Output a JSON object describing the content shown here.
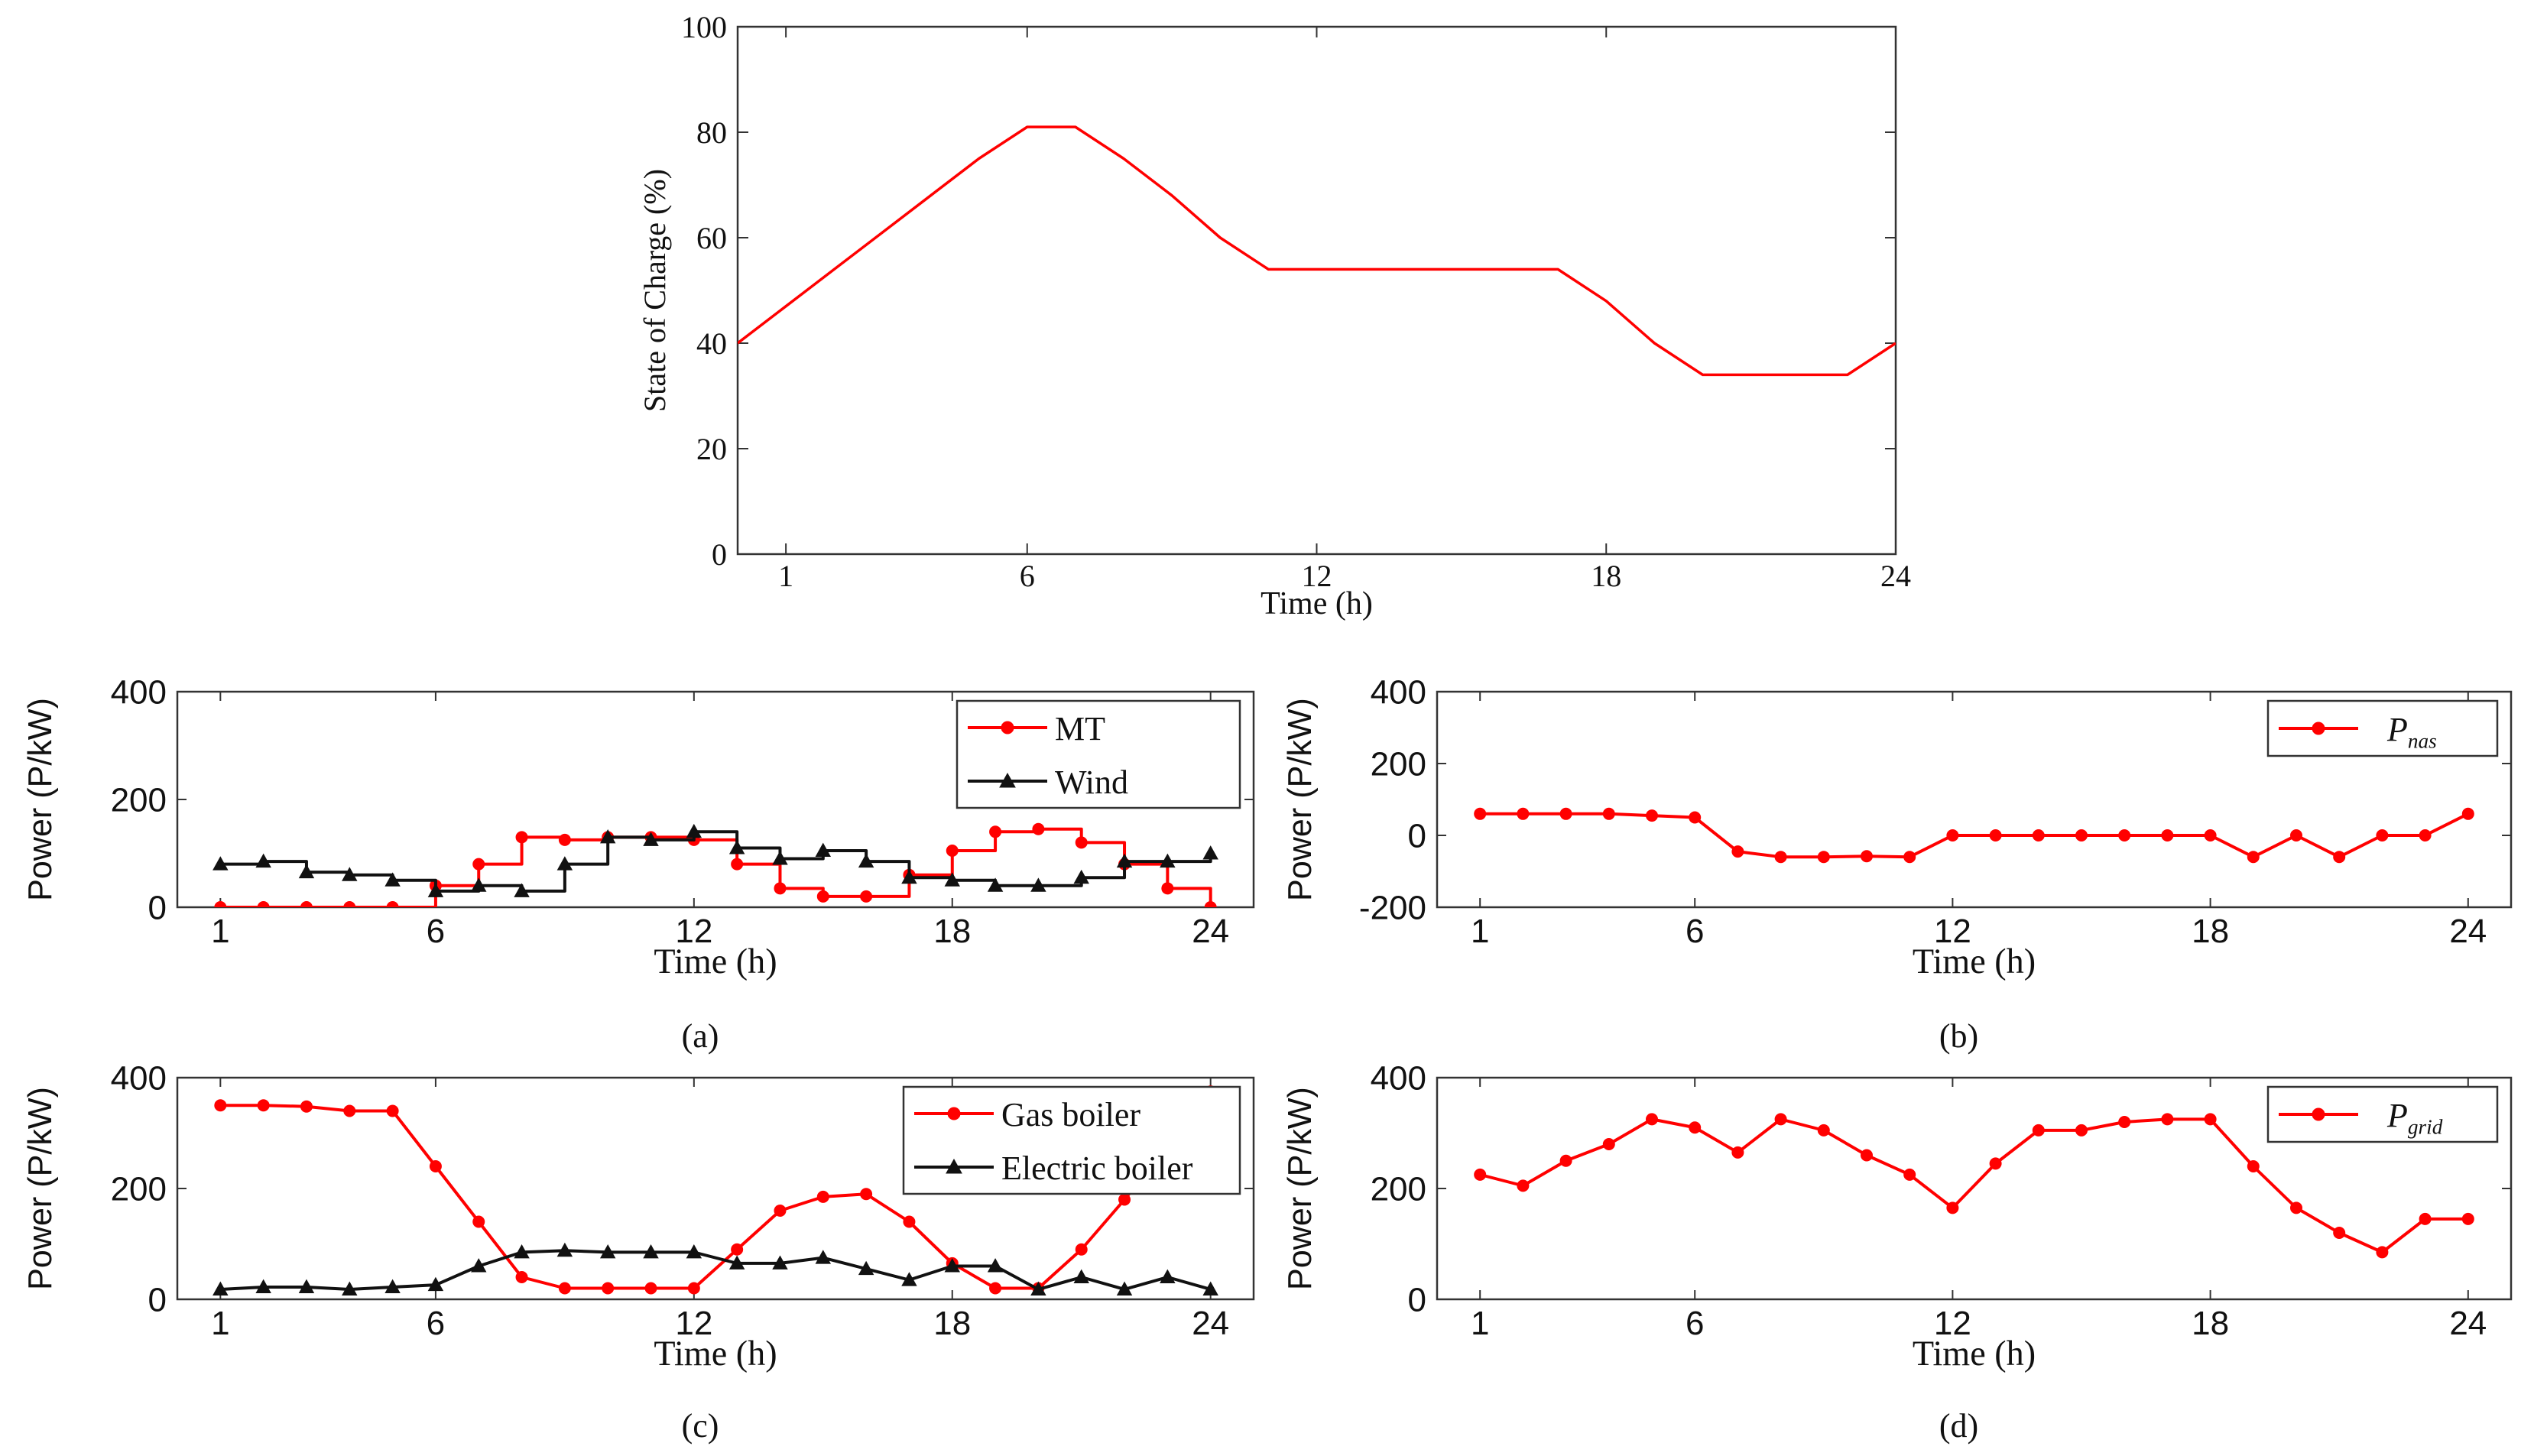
{
  "colors": {
    "red": "#ff0000",
    "black": "#111111",
    "axis": "#333333"
  },
  "chart_data": [
    {
      "id": "soc",
      "type": "line",
      "title": "",
      "xlabel": "Time (h)",
      "ylabel": "State of Charge (%)",
      "xlim": [
        0,
        24
      ],
      "ylim": [
        0,
        100
      ],
      "xticks": [
        1,
        6,
        12,
        18,
        24
      ],
      "yticks": [
        0,
        20,
        40,
        60,
        80,
        100
      ],
      "grid": false,
      "legend": "none",
      "series": [
        {
          "color": "#ff0000",
          "marker": "none",
          "step": false,
          "x": [
            0,
            1,
            2,
            3,
            4,
            5,
            6,
            7,
            8,
            9,
            10,
            11,
            12,
            13,
            14,
            15,
            16,
            17,
            18,
            19,
            20,
            21,
            22,
            23,
            24
          ],
          "values": [
            40,
            47,
            54,
            61,
            68,
            75,
            81,
            81,
            75,
            68,
            60,
            54,
            54,
            54,
            54,
            54,
            54,
            54,
            48,
            40,
            34,
            34,
            34,
            34,
            40
          ]
        }
      ]
    },
    {
      "id": "a",
      "type": "line",
      "caption": "(a)",
      "xlabel": "Time (h)",
      "ylabel": "Power (P/kW)",
      "xlim": [
        0,
        25
      ],
      "ylim": [
        0,
        400
      ],
      "xticks": [
        1,
        6,
        12,
        18,
        24
      ],
      "yticks": [
        0,
        200,
        400
      ],
      "legend": "top-right",
      "series": [
        {
          "name": "MT",
          "color": "#ff0000",
          "marker": "circle",
          "step": true,
          "x": [
            1,
            2,
            3,
            4,
            5,
            6,
            7,
            8,
            9,
            10,
            11,
            12,
            13,
            14,
            15,
            16,
            17,
            18,
            19,
            20,
            21,
            22,
            23,
            24
          ],
          "values": [
            0,
            0,
            0,
            0,
            0,
            40,
            80,
            130,
            125,
            130,
            130,
            125,
            80,
            35,
            20,
            20,
            60,
            105,
            140,
            145,
            120,
            80,
            35,
            0
          ]
        },
        {
          "name": "Wind",
          "color": "#111111",
          "marker": "triangle",
          "step": true,
          "x": [
            1,
            2,
            3,
            4,
            5,
            6,
            7,
            8,
            9,
            10,
            11,
            12,
            13,
            14,
            15,
            16,
            17,
            18,
            19,
            20,
            21,
            22,
            23,
            24
          ],
          "values": [
            80,
            85,
            65,
            60,
            50,
            30,
            40,
            30,
            80,
            130,
            125,
            140,
            110,
            90,
            105,
            85,
            55,
            50,
            40,
            40,
            55,
            85,
            85,
            100
          ]
        }
      ]
    },
    {
      "id": "b",
      "type": "line",
      "caption": "(b)",
      "xlabel": "Time (h)",
      "ylabel": "Power (P/kW)",
      "xlim": [
        0,
        25
      ],
      "ylim": [
        -200,
        400
      ],
      "xticks": [
        1,
        6,
        12,
        18,
        24
      ],
      "yticks": [
        -200,
        0,
        200,
        400
      ],
      "legend": "top-right",
      "series": [
        {
          "name": "P",
          "name_sub": "nas",
          "color": "#ff0000",
          "marker": "circle",
          "step": false,
          "x": [
            1,
            2,
            3,
            4,
            5,
            6,
            7,
            8,
            9,
            10,
            11,
            12,
            13,
            14,
            15,
            16,
            17,
            18,
            19,
            20,
            21,
            22,
            23,
            24
          ],
          "values": [
            60,
            60,
            60,
            60,
            55,
            50,
            -45,
            -60,
            -60,
            -58,
            -60,
            0,
            0,
            0,
            0,
            0,
            0,
            0,
            -60,
            0,
            -60,
            0,
            0,
            60
          ]
        }
      ]
    },
    {
      "id": "c",
      "type": "line",
      "caption": "(c)",
      "xlabel": "Time (h)",
      "ylabel": "Power (P/kW)",
      "xlim": [
        0,
        25
      ],
      "ylim": [
        0,
        400
      ],
      "xticks": [
        1,
        6,
        12,
        18,
        24
      ],
      "yticks": [
        0,
        200,
        400
      ],
      "legend": "top-right",
      "series": [
        {
          "name": "Gas boiler",
          "color": "#ff0000",
          "marker": "circle",
          "step": false,
          "x": [
            1,
            2,
            3,
            4,
            5,
            6,
            7,
            8,
            9,
            10,
            11,
            12,
            13,
            14,
            15,
            16,
            17,
            18,
            19,
            20,
            21,
            22,
            23,
            24
          ],
          "values": [
            350,
            350,
            348,
            340,
            340,
            240,
            140,
            40,
            20,
            20,
            20,
            20,
            90,
            160,
            185,
            190,
            140,
            65,
            20,
            20,
            90,
            180,
            275,
            375
          ]
        },
        {
          "name": "Electric boiler",
          "color": "#111111",
          "marker": "triangle",
          "step": false,
          "x": [
            1,
            2,
            3,
            4,
            5,
            6,
            7,
            8,
            9,
            10,
            11,
            12,
            13,
            14,
            15,
            16,
            17,
            18,
            19,
            20,
            21,
            22,
            23,
            24
          ],
          "values": [
            18,
            22,
            22,
            18,
            22,
            26,
            60,
            85,
            88,
            85,
            85,
            85,
            65,
            65,
            75,
            55,
            35,
            60,
            60,
            18,
            40,
            18,
            40,
            18
          ]
        }
      ]
    },
    {
      "id": "d",
      "type": "line",
      "caption": "(d)",
      "xlabel": "Time (h)",
      "ylabel": "Power (P/kW)",
      "xlim": [
        0,
        25
      ],
      "ylim": [
        0,
        400
      ],
      "xticks": [
        1,
        6,
        12,
        18,
        24
      ],
      "yticks": [
        0,
        200,
        400
      ],
      "legend": "top-right",
      "series": [
        {
          "name": "P",
          "name_sub": "grid",
          "color": "#ff0000",
          "marker": "circle",
          "step": false,
          "x": [
            1,
            2,
            3,
            4,
            5,
            6,
            7,
            8,
            9,
            10,
            11,
            12,
            13,
            14,
            15,
            16,
            17,
            18,
            19,
            20,
            21,
            22,
            23,
            24
          ],
          "values": [
            225,
            205,
            250,
            280,
            325,
            310,
            265,
            325,
            305,
            260,
            225,
            165,
            245,
            305,
            305,
            320,
            325,
            325,
            240,
            165,
            120,
            85,
            145,
            145
          ]
        }
      ]
    }
  ]
}
